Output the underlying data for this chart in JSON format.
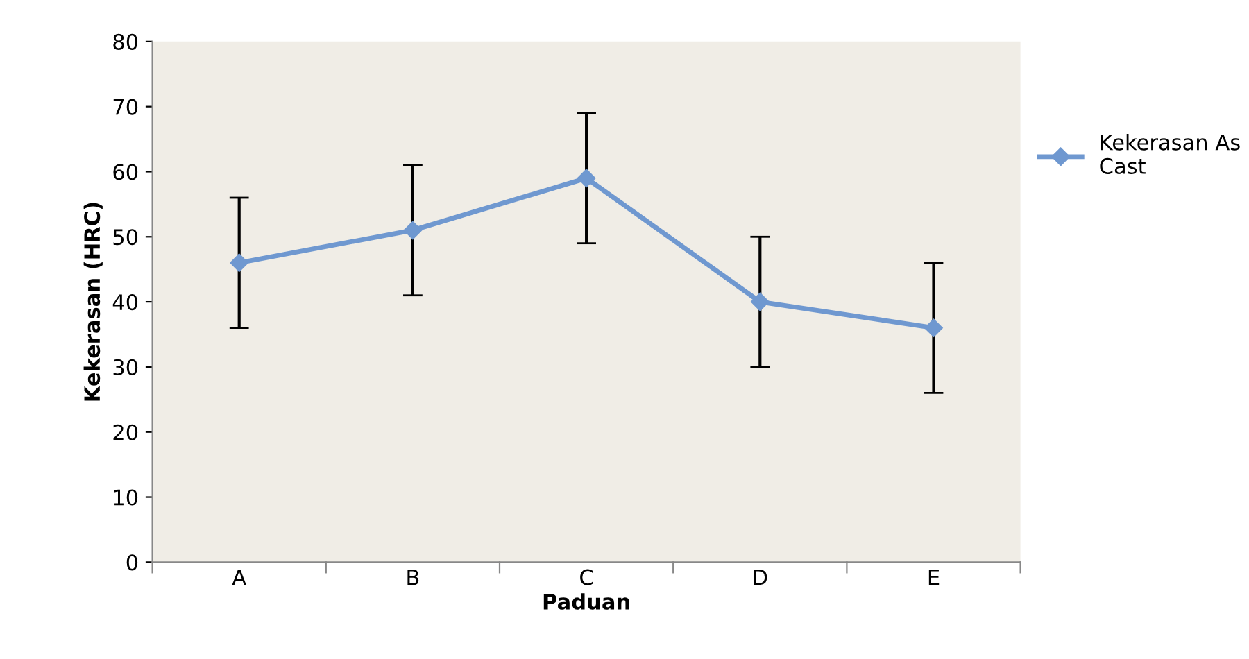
{
  "chart_data": {
    "type": "line",
    "xlabel": "Paduan",
    "ylabel": "Kekerasan (HRC)",
    "categories": [
      "A",
      "B",
      "C",
      "D",
      "E"
    ],
    "series": [
      {
        "name": "Kekerasan As Cast",
        "color": "#6f98d0",
        "values": [
          46,
          51,
          59,
          40,
          36
        ],
        "errors": [
          10,
          10,
          10,
          10,
          10
        ]
      }
    ],
    "ylim": [
      0,
      80
    ],
    "yticks": [
      0,
      10,
      20,
      30,
      40,
      50,
      60,
      70,
      80
    ],
    "marker": "diamond",
    "line_style": "solid",
    "legend": "right",
    "grid": false
  }
}
